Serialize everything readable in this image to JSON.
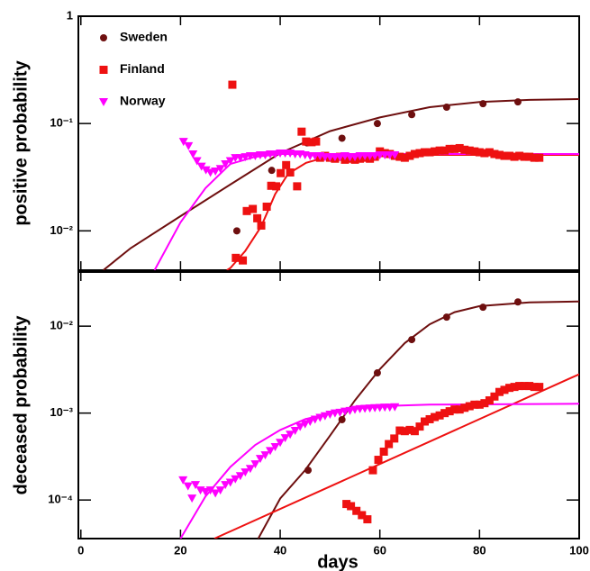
{
  "chart_data": [
    {
      "type": "scatter",
      "y_label": "positive probability",
      "xlim": [
        -0.5,
        100
      ],
      "xticks": [
        0,
        20,
        40,
        60,
        80,
        100
      ],
      "show_xtick_labels": false,
      "ylim": [
        0.0043,
        1
      ],
      "log_y": true,
      "yticks": [
        1,
        {
          "value": 0.1,
          "label": "10⁻¹"
        },
        {
          "value": 0.01,
          "label": "10⁻²"
        }
      ],
      "legend": "top-left",
      "series": [
        {
          "name": "Sweden",
          "color": "#6e0f0f",
          "marker": "circle",
          "x": [
            31.3,
            38.3,
            45.4,
            52.4,
            59.5,
            66.4,
            73.4,
            80.7,
            87.7
          ],
          "values": [
            0.01,
            0.0366,
            0.066,
            0.073,
            0.1,
            0.121,
            0.142,
            0.153,
            0.159
          ],
          "fit_x": [
            4.5,
            10,
            20,
            30,
            40,
            50,
            60,
            70,
            80,
            90,
            100
          ],
          "fit_values": [
            0.0043,
            0.0069,
            0.0137,
            0.027,
            0.053,
            0.085,
            0.114,
            0.142,
            0.159,
            0.166,
            0.169
          ]
        },
        {
          "name": "Finland",
          "color": "#ee1111",
          "marker": "square",
          "x": [
            30.4,
            31.1,
            32.5,
            33.3,
            34.5,
            35.4,
            36.2,
            37.3,
            38.2,
            39.2,
            40.1,
            41.2,
            42.0,
            43.4,
            44.3,
            45.2,
            46.3,
            47.2,
            48,
            49,
            50,
            51,
            52,
            53,
            54,
            55,
            56,
            57,
            58,
            59,
            60,
            61,
            62,
            63,
            64,
            65,
            66,
            67,
            68,
            69,
            70,
            71,
            72,
            73,
            74,
            75,
            76,
            77,
            78,
            79,
            80,
            81,
            82,
            83,
            84,
            85,
            86,
            87,
            88,
            89,
            90,
            91,
            92
          ],
          "values": [
            0.23,
            0.0056,
            0.0053,
            0.0153,
            0.016,
            0.0131,
            0.0112,
            0.0168,
            0.0263,
            0.026,
            0.0345,
            0.041,
            0.035,
            0.026,
            0.084,
            0.068,
            0.067,
            0.068,
            0.048,
            0.05,
            0.048,
            0.047,
            0.049,
            0.046,
            0.047,
            0.046,
            0.047,
            0.048,
            0.047,
            0.049,
            0.055,
            0.053,
            0.052,
            0.05,
            0.049,
            0.048,
            0.05,
            0.052,
            0.053,
            0.054,
            0.054,
            0.055,
            0.056,
            0.056,
            0.058,
            0.058,
            0.059,
            0.057,
            0.056,
            0.055,
            0.054,
            0.053,
            0.054,
            0.052,
            0.051,
            0.05,
            0.05,
            0.049,
            0.05,
            0.049,
            0.049,
            0.048,
            0.048
          ],
          "fit_x": [
            29.3,
            30,
            33,
            36.2,
            39,
            41.6,
            45.2,
            48.8,
            55,
            60,
            70,
            80,
            90,
            100
          ],
          "fit_values": [
            0.0043,
            0.0045,
            0.0065,
            0.011,
            0.022,
            0.034,
            0.043,
            0.048,
            0.05,
            0.051,
            0.051,
            0.051,
            0.051,
            0.051
          ]
        },
        {
          "name": "Norway",
          "color": "#ff00ff",
          "marker": "triangle",
          "x": [
            20.6,
            21.6,
            22.5,
            23.3,
            24.2,
            25.1,
            26,
            27,
            28,
            29,
            30,
            31,
            32,
            33,
            34,
            35,
            36,
            37,
            38,
            39,
            40,
            41,
            42,
            43,
            44,
            45,
            46,
            47,
            48,
            49,
            50,
            51,
            52,
            53,
            54,
            55,
            56,
            57,
            58,
            59,
            60,
            61,
            62,
            63
          ],
          "values": [
            0.068,
            0.062,
            0.052,
            0.045,
            0.04,
            0.037,
            0.035,
            0.036,
            0.038,
            0.042,
            0.045,
            0.048,
            0.048,
            0.049,
            0.05,
            0.05,
            0.051,
            0.051,
            0.052,
            0.052,
            0.053,
            0.053,
            0.053,
            0.052,
            0.052,
            0.051,
            0.05,
            0.05,
            0.05,
            0.049,
            0.049,
            0.049,
            0.049,
            0.05,
            0.049,
            0.049,
            0.05,
            0.05,
            0.05,
            0.05,
            0.051,
            0.051,
            0.051,
            0.051
          ],
          "fit_x": [
            14.8,
            20,
            25,
            30,
            35,
            40,
            60,
            80,
            100
          ],
          "fit_values": [
            0.0043,
            0.012,
            0.025,
            0.042,
            0.049,
            0.052,
            0.052,
            0.052,
            0.052
          ]
        }
      ]
    },
    {
      "type": "scatter",
      "y_label": "deceased probability",
      "x_label": "days",
      "xlim": [
        -0.5,
        100
      ],
      "xticks": [
        0,
        20,
        40,
        60,
        80,
        100
      ],
      "show_xtick_labels": true,
      "ylim": [
        3.6e-05,
        0.042
      ],
      "log_y": true,
      "yticks": [
        {
          "value": 0.01,
          "label": "10⁻²"
        },
        {
          "value": 0.001,
          "label": "10⁻³"
        },
        {
          "value": 0.0001,
          "label": "10⁻⁴"
        }
      ],
      "series": [
        {
          "color": "#6e0f0f",
          "marker": "circle",
          "x": [
            45.6,
            52.4,
            59.5,
            66.4,
            73.4,
            80.7,
            87.7
          ],
          "values": [
            0.00022,
            0.00084,
            0.0029,
            0.007,
            0.0127,
            0.0165,
            0.019
          ],
          "fit_x": [
            35.6,
            40,
            45,
            50,
            55,
            60,
            65,
            70,
            75,
            80,
            90,
            100
          ],
          "fit_values": [
            3.6e-05,
            0.000104,
            0.00022,
            0.00055,
            0.0014,
            0.0032,
            0.0064,
            0.0105,
            0.0145,
            0.017,
            0.0188,
            0.0192
          ]
        },
        {
          "color": "#ee1111",
          "marker": "square",
          "x": [
            53.3,
            54.2,
            55.3,
            56.4,
            57.5,
            58.6,
            59.7,
            60.8,
            61.8,
            62.9,
            64,
            65,
            66,
            67,
            68,
            69,
            70,
            71,
            72,
            73,
            74,
            75,
            76,
            77,
            78,
            79,
            80,
            81,
            82,
            83,
            84,
            85,
            86,
            87,
            88,
            89,
            90,
            91,
            92
          ],
          "values": [
            9e-05,
            8.5e-05,
            7.5e-05,
            6.7e-05,
            6e-05,
            0.00022,
            0.00029,
            0.00036,
            0.00044,
            0.00051,
            0.00063,
            0.00062,
            0.00064,
            0.00062,
            0.0007,
            0.0008,
            0.00085,
            0.0009,
            0.00094,
            0.001,
            0.00105,
            0.0011,
            0.0011,
            0.00115,
            0.0012,
            0.00125,
            0.00125,
            0.0013,
            0.0014,
            0.00155,
            0.00175,
            0.00185,
            0.00195,
            0.002,
            0.00205,
            0.00205,
            0.00205,
            0.002,
            0.002
          ],
          "fit_x": [
            26.8,
            100
          ],
          "fit_values": [
            3.6e-05,
            0.0028
          ]
        },
        {
          "color": "#ff00ff",
          "marker": "triangle",
          "x": [
            20.5,
            21.5,
            22.3,
            23,
            24,
            25,
            26,
            27,
            28,
            29,
            30,
            31,
            32,
            33,
            34,
            35,
            36,
            37,
            38,
            39,
            40,
            41,
            42,
            43,
            44,
            45,
            46,
            47,
            48,
            49,
            50,
            51,
            52,
            53,
            54,
            55,
            56,
            57,
            58,
            59,
            60,
            61,
            62,
            63
          ],
          "values": [
            0.00017,
            0.000145,
            0.000105,
            0.00015,
            0.00013,
            0.000125,
            0.00013,
            0.00012,
            0.00013,
            0.00015,
            0.00016,
            0.000175,
            0.00019,
            0.00021,
            0.00023,
            0.00026,
            0.0003,
            0.00033,
            0.00037,
            0.00041,
            0.00046,
            0.00052,
            0.00057,
            0.00063,
            0.0007,
            0.00075,
            0.0008,
            0.00085,
            0.00089,
            0.00093,
            0.00097,
            0.001,
            0.00102,
            0.00105,
            0.00107,
            0.0011,
            0.00112,
            0.00113,
            0.00114,
            0.00115,
            0.00116,
            0.00117,
            0.00117,
            0.00118
          ],
          "fit_x": [
            20,
            25,
            30,
            35,
            40,
            45,
            50,
            55,
            60,
            70,
            100
          ],
          "fit_values": [
            3.6e-05,
            0.00011,
            0.00024,
            0.00043,
            0.00064,
            0.00085,
            0.001,
            0.00112,
            0.0012,
            0.00125,
            0.00128
          ]
        }
      ]
    }
  ]
}
